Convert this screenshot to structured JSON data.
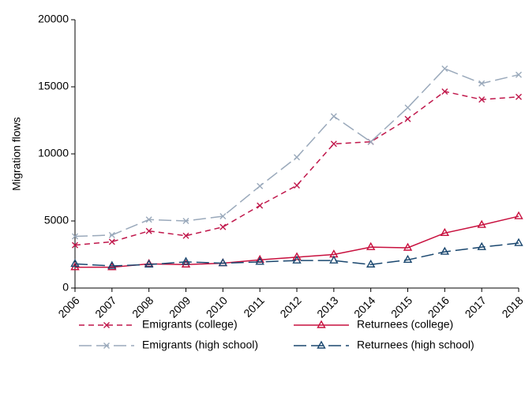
{
  "chart_data": {
    "type": "line",
    "y_label": "Migration flows",
    "x": [
      2006,
      2007,
      2008,
      2009,
      2010,
      2011,
      2012,
      2013,
      2014,
      2015,
      2016,
      2017,
      2018
    ],
    "xlim": [
      2006,
      2018
    ],
    "xticks": [
      2006,
      2007,
      2008,
      2009,
      2010,
      2011,
      2012,
      2013,
      2014,
      2015,
      2016,
      2017,
      2018
    ],
    "ylim": [
      0,
      20000
    ],
    "yticks": [
      0,
      5000,
      10000,
      15000,
      20000
    ],
    "legend": "bottom",
    "series": [
      {
        "name": "Emigrants (college)",
        "color": "#c0174b",
        "dash": "dashed",
        "marker": "x",
        "values": [
          3200,
          3450,
          4250,
          3900,
          4550,
          6150,
          7650,
          10750,
          10900,
          12600,
          14650,
          14050,
          14250
        ]
      },
      {
        "name": "Returnees (college)",
        "color": "#c8103e",
        "dash": "solid",
        "marker": "triangle",
        "values": [
          1550,
          1550,
          1800,
          1750,
          1850,
          2100,
          2300,
          2500,
          3050,
          3000,
          4100,
          4700,
          5350
        ]
      },
      {
        "name": "Emigrants (high school)",
        "color": "#9aa9bb",
        "dash": "longdash",
        "marker": "x",
        "values": [
          3850,
          3950,
          5100,
          5000,
          5350,
          7600,
          9750,
          12800,
          10900,
          13450,
          16350,
          15250,
          15900
        ]
      },
      {
        "name": "Returnees (high school)",
        "color": "#1a476f",
        "dash": "longdash",
        "marker": "triangle",
        "values": [
          1800,
          1650,
          1750,
          1950,
          1850,
          1950,
          2050,
          2050,
          1750,
          2100,
          2700,
          3050,
          3350
        ]
      }
    ]
  }
}
